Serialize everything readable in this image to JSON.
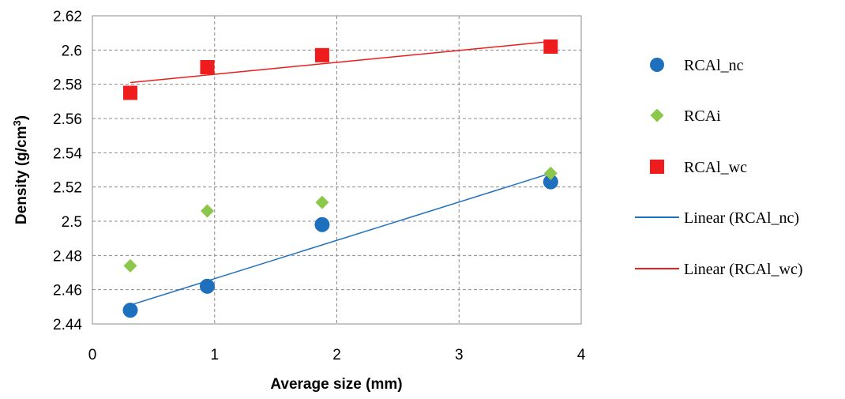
{
  "chart_data": {
    "type": "scatter",
    "title": "",
    "xlabel": "Average size (mm)",
    "ylabel": "Density (g/cm³)",
    "ylabel_main": "Density (g/cm",
    "ylabel_sup": "3",
    "ylabel_end": ")",
    "xlim": [
      0,
      4
    ],
    "ylim": [
      2.44,
      2.62
    ],
    "x_ticks": [
      0,
      1,
      2,
      3,
      4
    ],
    "x_tick_labels": [
      "0",
      "1",
      "2",
      "3",
      "4"
    ],
    "y_ticks": [
      2.44,
      2.46,
      2.48,
      2.5,
      2.52,
      2.54,
      2.56,
      2.58,
      2.6,
      2.62
    ],
    "y_tick_labels": [
      "2.44",
      "2.46",
      "2.48",
      "2.5",
      "2.52",
      "2.54",
      "2.56",
      "2.58",
      "2.6",
      "2.62"
    ],
    "grid": true,
    "legend_position": "right",
    "series": [
      {
        "name": "RCAl_nc",
        "marker": "circle",
        "color": "#1f6fbf",
        "x": [
          0.31,
          0.94,
          1.88,
          3.75
        ],
        "y": [
          2.448,
          2.462,
          2.498,
          2.523
        ]
      },
      {
        "name": "RCAi",
        "marker": "diamond",
        "color": "#8ac74a",
        "x": [
          0.31,
          0.94,
          1.88,
          3.75
        ],
        "y": [
          2.474,
          2.506,
          2.511,
          2.528
        ]
      },
      {
        "name": "RCAl_wc",
        "marker": "square",
        "color": "#ee1c1c",
        "x": [
          0.31,
          0.94,
          1.88,
          3.75
        ],
        "y": [
          2.575,
          2.59,
          2.597,
          2.602
        ]
      }
    ],
    "trendlines": [
      {
        "name": "Linear (RCAl_nc)",
        "color": "#1f6fbf",
        "x": [
          0.31,
          3.75
        ],
        "y": [
          2.451,
          2.528
        ]
      },
      {
        "name": "Linear (RCAl_wc)",
        "color": "#ee1c1c",
        "x": [
          0.31,
          3.75
        ],
        "y": [
          2.581,
          2.605
        ]
      }
    ]
  }
}
